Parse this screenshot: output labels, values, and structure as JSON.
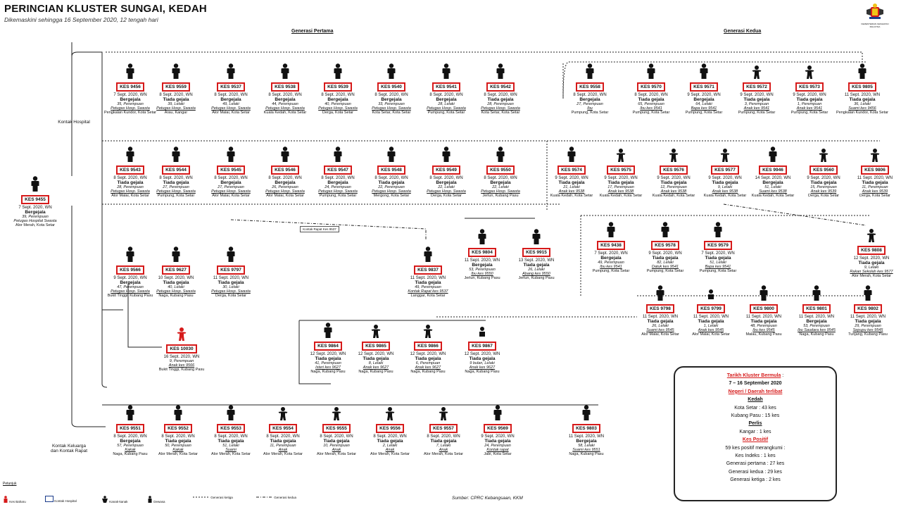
{
  "title": "PERINCIAN KLUSTER SUNGAI, KEDAH",
  "subtitle": "Dikemaskini sehingga 16 September 2020, 12 tengah hari",
  "generation_headers": {
    "first": "Generasi Pertama",
    "second": "Generasi Kedua"
  },
  "side_labels": {
    "hospital": "Kontak Hospital",
    "family": "Kontak Keluarga dan Kontak Rapat"
  },
  "source": "Sumber: CPRC Kebangsaan,  KKM",
  "logo_text": "KEMENTERIAN KESIHATAN MALAYSIA",
  "index_case": {
    "kes": "KES 9455",
    "date": "7 Sept. 2020, WN",
    "status": "Bergejala",
    "info": "39, Perempuan",
    "note": "Petugas Hospital Swasta",
    "loc": "Alor Merah, Kota Setar"
  },
  "notes": {
    "box1": "Kontak Rapat Kes 9537",
    "box2": ""
  },
  "nodes": [
    {
      "kes": "KES 9456",
      "date": "7 Sept. 2020, WN",
      "status": "Bergejala",
      "info": "35, Perempuan",
      "note": "Petugas Hosp. Swasta",
      "loc": "Pengkalan Kundor, Kota Setar",
      "icon": "adult"
    },
    {
      "kes": "KES 9559",
      "date": "8 Sept. 2020, WN",
      "status": "Tiada gejala",
      "info": "39, Lelaki",
      "note": "Petugas Hosp. Swasta",
      "loc": "Arau, Kangar",
      "icon": "adult"
    },
    {
      "kes": "KES 9537",
      "date": "8 Sept. 2020, WN",
      "status": "Bergejala",
      "info": "49, Lelaki",
      "note": "Petugas Hosp. Swasta",
      "loc": "Alor Malai, Kota Setar",
      "icon": "adult"
    },
    {
      "kes": "KES 9538",
      "date": "8 Sept. 2020, WN",
      "status": "Bergejala",
      "info": "44, Perempuan",
      "note": "Petugas Hosp. Swasta",
      "loc": "Kuala Kedah, Kota Setar",
      "icon": "adult"
    },
    {
      "kes": "KES 9539",
      "date": "8 Sept. 2020, WN",
      "status": "Bergejala",
      "info": "40, Perempuan",
      "note": "Petugas Hosp. Swasta",
      "loc": "Derga, Kota Setar",
      "icon": "adult"
    },
    {
      "kes": "KES 9540",
      "date": "8 Sept. 2020, WN",
      "status": "Bergejala",
      "info": "33, Perempuan",
      "note": "Petugas Hosp. Swasta",
      "loc": "Kota Setar, Kota Setar",
      "icon": "adult"
    },
    {
      "kes": "KES 9541",
      "date": "8 Sept. 2020, WN",
      "status": "Bergejala",
      "info": "28, Lelaki",
      "note": "Petugas Hosp. Swasta",
      "loc": "Pumpung, Kota Setar",
      "icon": "adult"
    },
    {
      "kes": "KES 9542",
      "date": "8 Sept. 2020, WN",
      "status": "Tiada gejala",
      "info": "28, Perempuan",
      "note": "Petugas Hosp. Swasta",
      "loc": "Kota Setar, Kota Setar",
      "icon": "adult"
    },
    {
      "kes": "KES 9543",
      "date": "8 Sept. 2020, WN",
      "status": "Tiada gejala",
      "info": "28, Perempuan",
      "note": "Petugas Hosp. Swasta",
      "loc": "Alor Malai, Kota Setar",
      "icon": "adult"
    },
    {
      "kes": "KES 9544",
      "date": "8 Sept. 2020, WN",
      "status": "Tiada gejala",
      "info": "27, Perempuan",
      "note": "Petugas Hosp. Swasta",
      "loc": "Pumpung, Kota Setar",
      "icon": "adult"
    },
    {
      "kes": "KES 9545",
      "date": "8 Sept. 2020, WN",
      "status": "Bergejala",
      "info": "27, Perempuan",
      "note": "Petugas Hosp. Swasta",
      "loc": "Alor Malai, Kota Setar",
      "icon": "adult"
    },
    {
      "kes": "KES 9546",
      "date": "8 Sept. 2020, WN",
      "status": "Bergejala",
      "info": "26, Perempuan",
      "note": "Petugas Hosp. Swasta",
      "loc": "Alor Malai, Kota Setar",
      "icon": "adult"
    },
    {
      "kes": "KES 9547",
      "date": "8 Sept. 2020, WN",
      "status": "Bergejala",
      "info": "24, Perempuan",
      "note": "Petugas Hosp. Swasta",
      "loc": "Pumpung, Kota Setar",
      "icon": "adult"
    },
    {
      "kes": "KES 9548",
      "date": "8 Sept. 2020, WN",
      "status": "Tiada gejala",
      "info": "22, Perempuan",
      "note": "Petugas Hosp. Swasta",
      "loc": "Mergong, Kota Setar",
      "icon": "adult"
    },
    {
      "kes": "KES 9549",
      "date": "8 Sept. 2020, WN",
      "status": "Bergejala",
      "info": "22, Lelaki",
      "note": "Petugas Hosp. Swasta",
      "loc": "Derga, Kota Setar",
      "icon": "adult"
    },
    {
      "kes": "KES 9550",
      "date": "8 Sept. 2020, WN",
      "status": "Bergejala",
      "info": "22, Lelaki",
      "note": "Petugas Hosp. Swasta",
      "loc": "Jerlun, Kubang Pasu",
      "icon": "adult"
    },
    {
      "kes": "KES 9566",
      "date": "9 Sept. 2020, WN",
      "status": "Bergejala",
      "info": "47, Perempuan",
      "note": "Petugas Hosp. Swasta",
      "loc": "Bukit Tinggi, Kubang Pasu",
      "icon": "adult"
    },
    {
      "kes": "KES 9627",
      "date": "10 Sept. 2020, WN",
      "status": "Tiada gejala",
      "info": "40, Lelaki",
      "note": "Petugas Hosp. Swasta",
      "loc": "Naga, Kubang Pasu",
      "icon": "adult"
    },
    {
      "kes": "KES 9797",
      "date": "11 Sept. 2020, WN",
      "status": "Tiada gejala",
      "info": "30, Lelaki",
      "note": "Petugas Hosp. Swasta",
      "loc": "Derga, Kota Setar",
      "icon": "adult"
    },
    {
      "kes": "KES 9837",
      "date": "11 Sept. 2020, WN",
      "status": "Tiada gejala",
      "info": "49, Perempuan",
      "note": "Kontak Rapat kes 9537",
      "loc": "Langgar, Kota Setar",
      "icon": "adult"
    },
    {
      "kes": "KES 9804",
      "date": "11 Sept. 2020, WN",
      "status": "Bergejala",
      "info": "53, Perempuan",
      "note": "Ibu kes 9550",
      "loc": "Jerlun, Kubang Pasu",
      "icon": "adult"
    },
    {
      "kes": "KES 9915",
      "date": "13 Sept. 2020, WN",
      "status": "Tiada gejala",
      "info": "26, Lelaki",
      "note": "Abang kes 9550",
      "loc": "Jerlun, Kubang Pasu",
      "icon": "adult"
    },
    {
      "kes": "KES 10030",
      "date": "16 Sept. 2020, WN",
      "status": "",
      "info": "9, Perempuan",
      "note": "Anak kes 9566",
      "loc": "Bukit Tinggi, Kubang Pasu",
      "icon": "child-red"
    },
    {
      "kes": "KES 9864",
      "date": "12 Sept. 2020, WN",
      "status": "Tiada gejala",
      "info": "41, Perempuan",
      "note": "Isteri kes 9627",
      "loc": "Naga, Kubang Pasu",
      "icon": "adult"
    },
    {
      "kes": "KES 9865",
      "date": "12 Sept. 2020, WN",
      "status": "Tiada gejala",
      "info": "8, Lelaki",
      "note": "Anak kes 9627",
      "loc": "Naga, Kubang Pasu",
      "icon": "child"
    },
    {
      "kes": "KES 9866",
      "date": "12 Sept. 2020, WN",
      "status": "Tiada gejala",
      "info": "6, Perempuan",
      "note": "Anak kes 9627",
      "loc": "Naga, Kubang Pasu",
      "icon": "child"
    },
    {
      "kes": "KES 9867",
      "date": "12 Sept. 2020, WN",
      "status": "Tiada gejala",
      "info": "9 bulan, Lelaki",
      "note": "Anak kes 9627",
      "loc": "Naga, Kubang Pasu",
      "icon": "baby"
    },
    {
      "kes": "KES 9558",
      "date": "8 Sept. 2020, WN",
      "status": "Bergejala",
      "info": "27, Perempuan",
      "note": "Ibu",
      "loc": "Pumpung, Kota Setar",
      "icon": "adult"
    },
    {
      "kes": "KES 9570",
      "date": "8 Sept. 2020, WN",
      "status": "Tiada gejala",
      "info": "65, Perempuan",
      "note": "Ibu kes 9541",
      "loc": "Pumpung, Kota Setar",
      "icon": "adult"
    },
    {
      "kes": "KES 9571",
      "date": "9 Sept. 2020, WN",
      "status": "Bergejala",
      "info": "64, Lelaki",
      "note": "Bapa kes 9541",
      "loc": "Pumpung, Kota Setar",
      "icon": "adult"
    },
    {
      "kes": "KES 9572",
      "date": "9 Sept. 2020, WN",
      "status": "Tiada gejala",
      "info": "3, Perempuan",
      "note": "Anak kes 9541",
      "loc": "Pumpung, Kota Setar",
      "icon": "child"
    },
    {
      "kes": "KES 9573",
      "date": "9 Sept. 2020, WN",
      "status": "Tiada gejala",
      "info": "1, Perempuan",
      "note": "Anak kes 9541",
      "loc": "Pumpung, Kota Setar",
      "icon": "child"
    },
    {
      "kes": "KES 9805",
      "date": "11 Sept. 2020, WN",
      "status": "Tiada gejala",
      "info": "36, Lelaki",
      "note": "Suami kes 9456",
      "loc": "Pengkalan Kundor, Kota Setar",
      "icon": "adult"
    },
    {
      "kes": "KES 9574",
      "date": "9 Sept. 2020, WN",
      "status": "Tiada gejala",
      "info": "21, Lelaki",
      "note": "Anak kes 9538",
      "loc": "Kuala Kedah, Kota Setar",
      "icon": "adult"
    },
    {
      "kes": "KES 9575",
      "date": "9 Sept. 2020, WN",
      "status": "Tiada gejala",
      "info": "17, Perempuan",
      "note": "Anak kes 9538",
      "loc": "Kuala Kedah, Kota Setar",
      "icon": "child"
    },
    {
      "kes": "KES 9576",
      "date": "9 Sept. 2020, WN",
      "status": "Tiada gejala",
      "info": "12, Perempuan",
      "note": "Anak kes 9538",
      "loc": "Kuala Kedah, Kota Setar",
      "icon": "child"
    },
    {
      "kes": "KES 9577",
      "date": "9 Sept. 2020, WN",
      "status": "Tiada gejala",
      "info": "9, Lelaki",
      "note": "Anak kes 9538",
      "loc": "Kuala Kedah, Kota Setar",
      "icon": "child"
    },
    {
      "kes": "KES 9946",
      "date": "14 Sept. 2020, WN",
      "status": "Bergejala",
      "info": "51, Lelaki",
      "note": "Suami kes 9538",
      "loc": "Kuala Kedah, Kota Setar",
      "icon": "adult"
    },
    {
      "kes": "KES 9560",
      "date": "9 Sept. 2020, WN",
      "status": "Tiada gejala",
      "info": "15, Perempuan",
      "note": "Anak kes 9539",
      "loc": "Derga, Kota Setar",
      "icon": "child"
    },
    {
      "kes": "KES 9806",
      "date": "11 Sept. 2020, WN",
      "status": "Tiada gejala",
      "info": "11, Perempuan",
      "note": "Anak kes 9539",
      "loc": "Derga, Kota Setar",
      "icon": "child"
    },
    {
      "kes": "KES 9438",
      "date": "7 Sept. 2020, WN",
      "status": "Bergejala",
      "info": "49, Perempuan",
      "note": "Ibu kes 9541",
      "loc": "Pumpung, Kota Setar",
      "icon": "adult"
    },
    {
      "kes": "KES 9578",
      "date": "9 Sept. 2020, WN",
      "status": "Tiada gejala",
      "info": "82, Lelaki",
      "note": "Datuk kes 9541",
      "loc": "Pumpung, Kota Setar",
      "icon": "adult"
    },
    {
      "kes": "KES 9579",
      "date": "7 Sept. 2020, WN",
      "status": "Tiada gejala",
      "info": "51, Lelaki",
      "note": "Bapa kes 9541",
      "loc": "Pumpung, Kota Setar",
      "icon": "adult"
    },
    {
      "kes": "KES 9808",
      "date": "12 Sept. 2020, WN",
      "status": "Tiada gejala",
      "info": "9, Lelaki",
      "note": "Rakan Sekolah kes 9577",
      "loc": "Alor Merah, Kota Setar",
      "icon": "child"
    },
    {
      "kes": "KES 9798",
      "date": "11 Sept. 2020, WN",
      "status": "Tiada gejala",
      "info": "26, Lelaki",
      "note": "Suami kes 9545",
      "loc": "Alor Malai, Kota Setar",
      "icon": "adult"
    },
    {
      "kes": "KES 9799",
      "date": "11 Sept. 2020, WN",
      "status": "Tiada gejala",
      "info": "1, Lelaki",
      "note": "Anak kes 9545",
      "loc": "Alor Malai, Kota Setar",
      "icon": "baby"
    },
    {
      "kes": "KES 9800",
      "date": "11 Sept. 2020, WN",
      "status": "Tiada gejala",
      "info": "48, Perempuan",
      "note": "Ibu kes 9545",
      "loc": "Malau, Kubang Pasu",
      "icon": "adult"
    },
    {
      "kes": "KES 9801",
      "date": "11 Sept. 2020, WN",
      "status": "Bergejala",
      "info": "53, Perempuan",
      "note": "Ibu Saudara kes 9545",
      "loc": "Naga, Kubang Pasu",
      "icon": "adult"
    },
    {
      "kes": "KES 9802",
      "date": "11 Sept. 2020, WN",
      "status": "Tiada gejala",
      "info": "29, Perempuan",
      "note": "Sepupu kes 9545",
      "loc": "Tunjang, Kubang Pasu",
      "icon": "adult"
    },
    {
      "kes": "KES 9551",
      "date": "8 Sept. 2020, WN",
      "status": "Bergejala",
      "info": "57, Perempuan",
      "note": "Kakak",
      "loc": "Naga, Kubang Pasu",
      "icon": "adult"
    },
    {
      "kes": "KES 9552",
      "date": "8 Sept. 2020, WN",
      "status": "Tiada gejala",
      "info": "50, Perempuan",
      "note": "Kakak",
      "loc": "Alor Merah, Kota Setar",
      "icon": "adult"
    },
    {
      "kes": "KES 9553",
      "date": "8 Sept. 2020, WN",
      "status": "Tiada gejala",
      "info": "51, Lelaki",
      "note": "Suami",
      "loc": "Alor Merah, Kota Setar",
      "icon": "adult"
    },
    {
      "kes": "KES 9554",
      "date": "8 Sept. 2020, WN",
      "status": "Tiada gejala",
      "info": "11, Perempuan",
      "note": "Anak",
      "loc": "Alor Merah, Kota Setar",
      "icon": "child"
    },
    {
      "kes": "KES 9555",
      "date": "8 Sept. 2020, WN",
      "status": "Tiada gejala",
      "info": "10, Perempuan",
      "note": "Anak",
      "loc": "Alor Merah, Kota Setar",
      "icon": "child"
    },
    {
      "kes": "KES 9556",
      "date": "8 Sept. 2020, WN",
      "status": "Tiada gejala",
      "info": "2, Lelaki",
      "note": "Anak",
      "loc": "Alor Merah, Kota Setar",
      "icon": "child"
    },
    {
      "kes": "KES 9557",
      "date": "8 Sept. 2020, WN",
      "status": "Tiada gejala",
      "info": "7, Lelaki",
      "note": "Anak",
      "loc": "Alor Merah, Kota Setar",
      "icon": "child"
    },
    {
      "kes": "KES 9569",
      "date": "9 Sept. 2020, WN",
      "status": "Tiada gejala",
      "info": "24, Perempuan",
      "note": "Kontak rapat",
      "loc": "Jabi, Kota Setar",
      "icon": "adult"
    },
    {
      "kes": "KES 9803",
      "date": "11 Sept. 2020, WN",
      "status": "Bergejala",
      "info": "58, Lelaki",
      "note": "Suami kes 9551",
      "loc": "Naga, Kubang Pasu",
      "icon": "adult"
    }
  ],
  "summary": {
    "tarikh_label": "Tarikh Kluster Bermula",
    "tarikh_value": "7 – 16 September 2020",
    "negeri_label": "Negeri / Daerah terlibat",
    "kedah_label": "Kedah",
    "kedah_line1": "Kota Setar : 43 kes",
    "kedah_line2": "Kubang Pasu : 15 kes",
    "perlis_label": "Perlis",
    "perlis_line1": "Kangar : 1 kes",
    "positif_label": "Kes Positif",
    "positif_line1": "59 kes positif merangkumi :",
    "positif_line2": "Kes Indeks : 1 kes",
    "positif_line3": "Generasi pertama : 27 kes",
    "positif_line4": "Generasi kedua : 29 kes",
    "positif_line5": "Generasi ketiga : 2 kes"
  },
  "legend": {
    "title": "Petunjuk",
    "items": [
      "Kes Baharu",
      "Kontak Hospital",
      "Kanak-kanak",
      "Dewasa",
      "Generasi ketiga",
      "Generasi kedua"
    ]
  }
}
